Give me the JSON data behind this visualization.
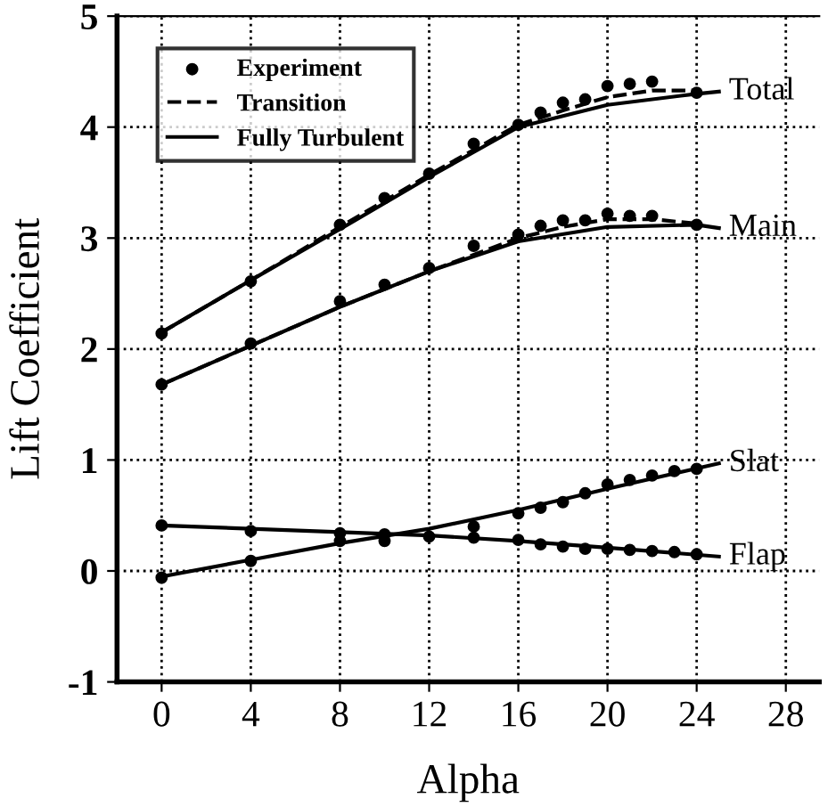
{
  "chart_data": {
    "type": "line",
    "xlabel": "Alpha",
    "ylabel": "Lift Coefficient",
    "xlim": [
      -2,
      29.5
    ],
    "ylim": [
      -1,
      5
    ],
    "xticks": [
      0,
      4,
      8,
      12,
      16,
      20,
      24,
      28
    ],
    "yticks": [
      -1,
      0,
      1,
      2,
      3,
      4,
      5
    ],
    "grid": true,
    "legend": "top left",
    "series": [
      {
        "name": "Experiment",
        "type": "scatter",
        "marker": "circle",
        "color": "#000000",
        "x": [
          0,
          4,
          8,
          10,
          12,
          14,
          16,
          17,
          18,
          19,
          20,
          21,
          22,
          24
        ],
        "values": [
          2.14,
          2.61,
          3.12,
          3.36,
          3.58,
          3.85,
          4.02,
          4.13,
          4.22,
          4.25,
          4.37,
          4.39,
          4.41,
          4.31
        ]
      },
      {
        "name": "Transition",
        "line_style": "dashed",
        "color": "#000000",
        "x": [
          0,
          4,
          8,
          12,
          16,
          18,
          20,
          22,
          24
        ],
        "values": [
          2.15,
          2.62,
          3.1,
          3.57,
          4.02,
          4.15,
          4.27,
          4.33,
          4.33
        ]
      },
      {
        "name": "Fully Turbulent",
        "line_style": "solid",
        "color": "#000000",
        "x": [
          0,
          4,
          8,
          12,
          16,
          20,
          24,
          25
        ],
        "values": [
          2.15,
          2.62,
          3.08,
          3.55,
          4.0,
          4.2,
          4.3,
          4.32
        ]
      },
      {
        "type": "scatter",
        "marker": "circle",
        "color": "#000000",
        "x": [
          0,
          4,
          8,
          10,
          12,
          14,
          16,
          17,
          18,
          19,
          20,
          21,
          22,
          24
        ],
        "values": [
          1.68,
          2.05,
          2.43,
          2.58,
          2.73,
          2.93,
          3.03,
          3.11,
          3.16,
          3.16,
          3.22,
          3.2,
          3.2,
          3.12
        ]
      },
      {
        "type": "line",
        "line_style": "dashed",
        "color": "#000000",
        "x": [
          0,
          4,
          8,
          12,
          16,
          18,
          20,
          22,
          24
        ],
        "values": [
          1.68,
          2.03,
          2.38,
          2.7,
          3.0,
          3.1,
          3.17,
          3.17,
          3.13
        ]
      },
      {
        "type": "line",
        "line_style": "solid",
        "color": "#000000",
        "x": [
          0,
          4,
          8,
          12,
          16,
          20,
          24,
          25
        ],
        "values": [
          1.68,
          2.03,
          2.38,
          2.7,
          2.97,
          3.1,
          3.12,
          3.09
        ]
      },
      {
        "type": "scatter",
        "marker": "circle",
        "color": "#000000",
        "x": [
          0,
          4,
          8,
          10,
          12,
          14,
          16,
          17,
          18,
          19,
          20,
          21,
          22,
          23,
          24
        ],
        "values": [
          -0.06,
          0.09,
          0.27,
          0.27,
          null,
          0.4,
          0.52,
          0.57,
          0.62,
          0.7,
          0.78,
          0.82,
          0.86,
          0.9,
          0.92
        ]
      },
      {
        "type": "line",
        "line_style": "solid",
        "color": "#000000",
        "x": [
          0,
          4,
          8,
          12,
          16,
          20,
          25
        ],
        "values": [
          -0.05,
          0.1,
          0.25,
          0.38,
          0.55,
          0.74,
          0.97
        ]
      },
      {
        "type": "scatter",
        "marker": "circle",
        "color": "#000000",
        "x": [
          0,
          4,
          8,
          10,
          12,
          14,
          16,
          17,
          18,
          19,
          20,
          21,
          22,
          23,
          24
        ],
        "values": [
          0.41,
          0.36,
          0.34,
          0.33,
          0.31,
          0.3,
          0.28,
          0.24,
          0.22,
          0.2,
          0.2,
          0.19,
          0.18,
          0.17,
          0.15
        ]
      },
      {
        "type": "line",
        "line_style": "solid",
        "color": "#000000",
        "x": [
          0,
          8,
          12,
          16,
          20,
          25
        ],
        "values": [
          0.41,
          0.35,
          0.32,
          0.27,
          0.21,
          0.13
        ]
      }
    ],
    "annotations": [
      "Total",
      "Main",
      "Slat",
      "Flap"
    ]
  }
}
